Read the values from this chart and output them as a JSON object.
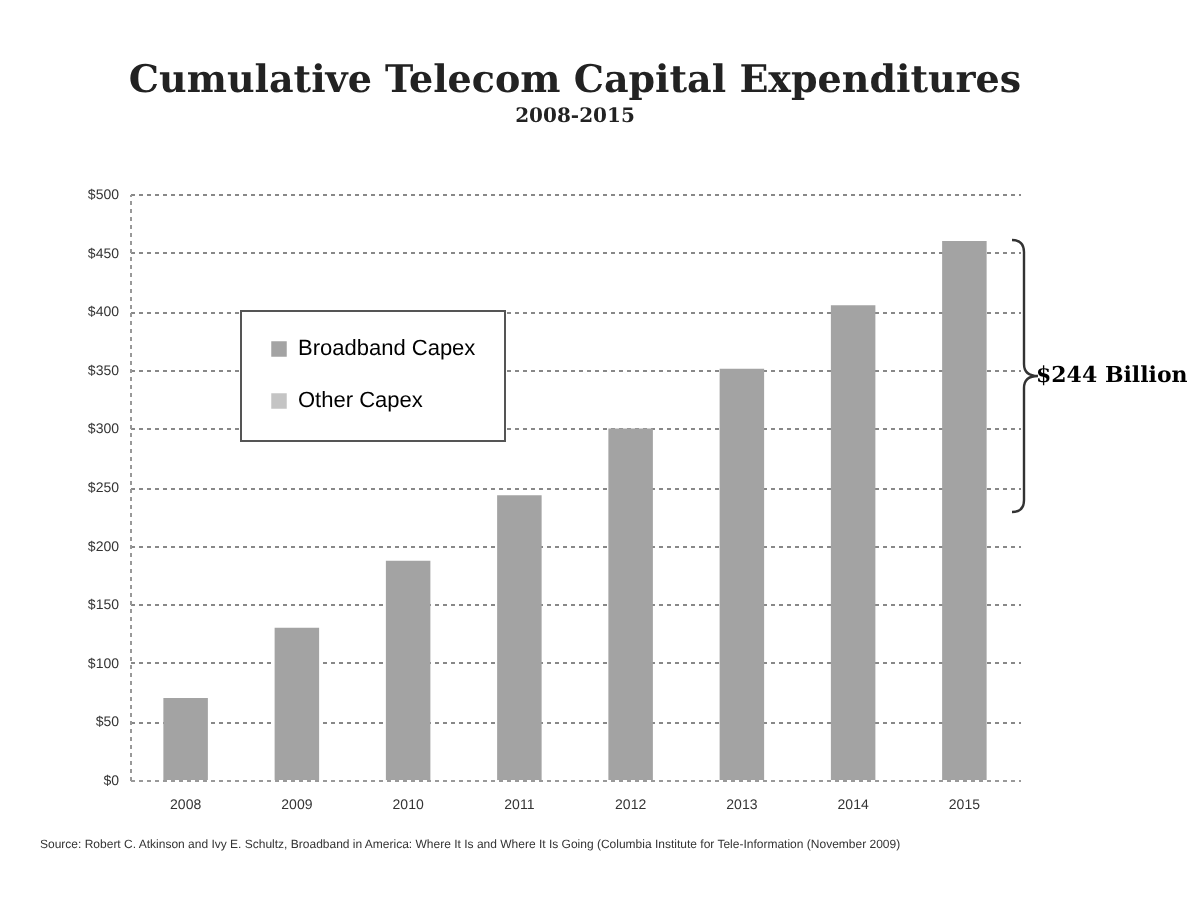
{
  "chart_data": {
    "type": "bar",
    "title": "Cumulative Telecom Capital Expenditures",
    "subtitle": "2008-2015",
    "categories": [
      "2008",
      "2009",
      "2010",
      "2011",
      "2012",
      "2013",
      "2014",
      "2015"
    ],
    "series": [
      {
        "name": "Broadband Capex",
        "color": "#a3a3a3",
        "values": [
          70,
          130,
          187,
          243,
          300,
          351,
          405,
          460
        ]
      },
      {
        "name": "Other Capex",
        "color": "#c4c4c4",
        "values": [
          null,
          null,
          null,
          null,
          null,
          null,
          null,
          null
        ]
      }
    ],
    "ylim": [
      0,
      500
    ],
    "yticks": [
      {
        "value": 0,
        "label": "$0"
      },
      {
        "value": 50,
        "label": "$50"
      },
      {
        "value": 100,
        "label": "$100"
      },
      {
        "value": 150,
        "label": "$150"
      },
      {
        "value": 200,
        "label": "$200"
      },
      {
        "value": 250,
        "label": "$250"
      },
      {
        "value": 300,
        "label": "$300"
      },
      {
        "value": 350,
        "label": "$350"
      },
      {
        "value": 400,
        "label": "$400"
      },
      {
        "value": 450,
        "label": "$450"
      },
      {
        "value": 500,
        "label": "$500"
      }
    ],
    "grid": "y",
    "legend": "top left",
    "annotations": [
      "$244 Billion",
      "Source: Robert C. Atkinson and Ivy E. Schultz, Broadband in America: Where It Is and Where It Is Going (Columbia Institute for Tele-Information (November 2009)"
    ]
  }
}
